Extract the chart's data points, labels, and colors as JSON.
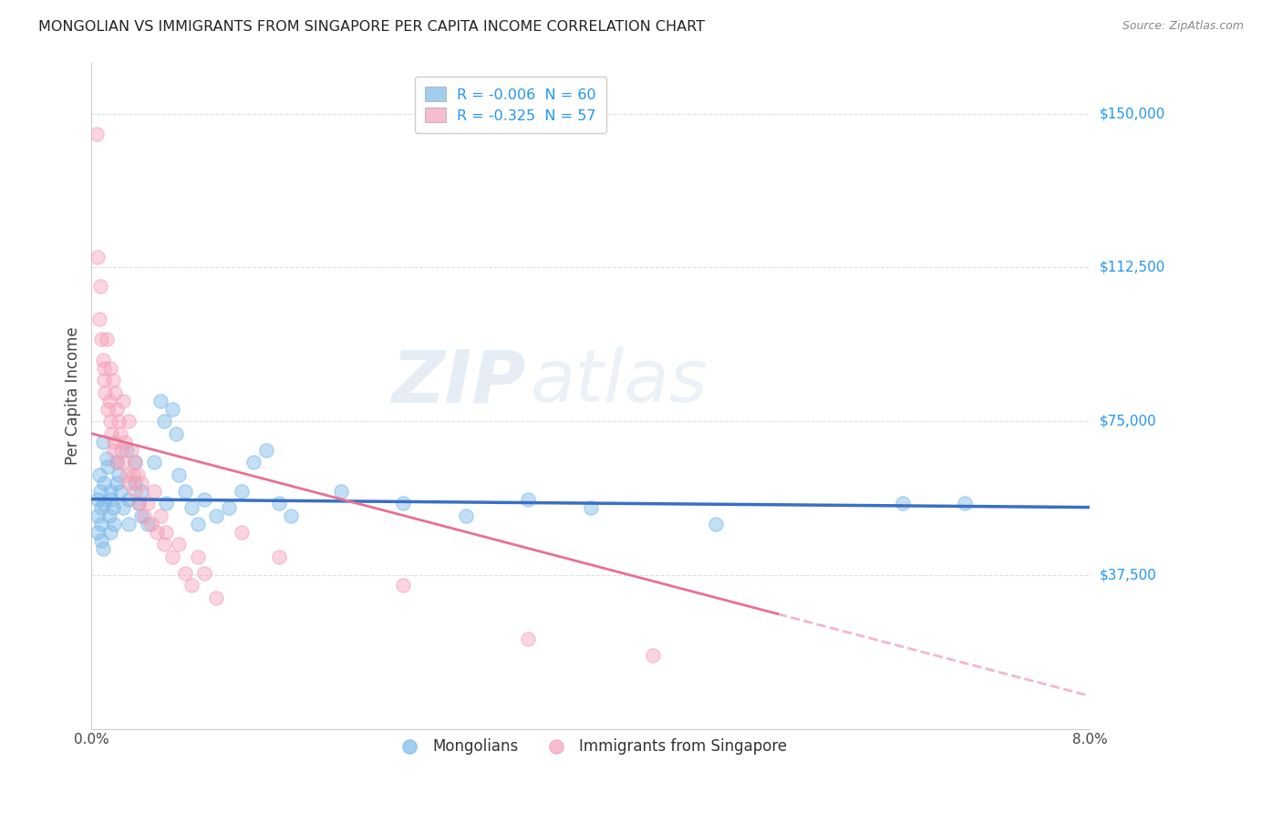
{
  "title": "MONGOLIAN VS IMMIGRANTS FROM SINGAPORE PER CAPITA INCOME CORRELATION CHART",
  "source": "Source: ZipAtlas.com",
  "ylabel": "Per Capita Income",
  "yticks": [
    0,
    37500,
    75000,
    112500,
    150000
  ],
  "ytick_labels": [
    "",
    "$37,500",
    "$75,000",
    "$112,500",
    "$150,000"
  ],
  "xlim": [
    0.0,
    8.0
  ],
  "ylim": [
    0,
    162500
  ],
  "watermark": "ZIPatlas",
  "mongolian_color": "#7ab8e8",
  "singapore_color": "#f4a0b8",
  "mongolian_R": -0.006,
  "singapore_R": -0.325,
  "mongolian_N": 60,
  "singapore_N": 57,
  "mongolian_line_color": "#3a6fc4",
  "singapore_line_color": "#e87090",
  "grid_color": "#d8d8d8",
  "background_color": "#ffffff",
  "mongolian_points": [
    [
      0.05,
      56000
    ],
    [
      0.05,
      52000
    ],
    [
      0.05,
      48000
    ],
    [
      0.06,
      62000
    ],
    [
      0.07,
      58000
    ],
    [
      0.08,
      54000
    ],
    [
      0.08,
      50000
    ],
    [
      0.08,
      46000
    ],
    [
      0.09,
      70000
    ],
    [
      0.09,
      44000
    ],
    [
      0.1,
      60000
    ],
    [
      0.1,
      55000
    ],
    [
      0.12,
      66000
    ],
    [
      0.13,
      64000
    ],
    [
      0.14,
      52000
    ],
    [
      0.15,
      58000
    ],
    [
      0.15,
      48000
    ],
    [
      0.16,
      56000
    ],
    [
      0.17,
      54000
    ],
    [
      0.18,
      50000
    ],
    [
      0.2,
      65000
    ],
    [
      0.2,
      60000
    ],
    [
      0.22,
      62000
    ],
    [
      0.23,
      58000
    ],
    [
      0.25,
      54000
    ],
    [
      0.28,
      68000
    ],
    [
      0.3,
      56000
    ],
    [
      0.3,
      50000
    ],
    [
      0.35,
      65000
    ],
    [
      0.35,
      60000
    ],
    [
      0.38,
      55000
    ],
    [
      0.4,
      58000
    ],
    [
      0.4,
      52000
    ],
    [
      0.45,
      50000
    ],
    [
      0.5,
      65000
    ],
    [
      0.55,
      80000
    ],
    [
      0.58,
      75000
    ],
    [
      0.6,
      55000
    ],
    [
      0.65,
      78000
    ],
    [
      0.68,
      72000
    ],
    [
      0.7,
      62000
    ],
    [
      0.75,
      58000
    ],
    [
      0.8,
      54000
    ],
    [
      0.85,
      50000
    ],
    [
      0.9,
      56000
    ],
    [
      1.0,
      52000
    ],
    [
      1.1,
      54000
    ],
    [
      1.2,
      58000
    ],
    [
      1.3,
      65000
    ],
    [
      1.4,
      68000
    ],
    [
      1.5,
      55000
    ],
    [
      1.6,
      52000
    ],
    [
      2.0,
      58000
    ],
    [
      2.5,
      55000
    ],
    [
      3.0,
      52000
    ],
    [
      3.5,
      56000
    ],
    [
      4.0,
      54000
    ],
    [
      5.0,
      50000
    ],
    [
      6.5,
      55000
    ],
    [
      7.0,
      55000
    ]
  ],
  "singapore_points": [
    [
      0.04,
      145000
    ],
    [
      0.05,
      115000
    ],
    [
      0.06,
      100000
    ],
    [
      0.07,
      108000
    ],
    [
      0.08,
      95000
    ],
    [
      0.09,
      90000
    ],
    [
      0.1,
      88000
    ],
    [
      0.1,
      85000
    ],
    [
      0.11,
      82000
    ],
    [
      0.12,
      95000
    ],
    [
      0.13,
      78000
    ],
    [
      0.14,
      80000
    ],
    [
      0.15,
      88000
    ],
    [
      0.15,
      75000
    ],
    [
      0.16,
      72000
    ],
    [
      0.17,
      85000
    ],
    [
      0.18,
      70000
    ],
    [
      0.18,
      68000
    ],
    [
      0.19,
      82000
    ],
    [
      0.2,
      78000
    ],
    [
      0.2,
      65000
    ],
    [
      0.22,
      75000
    ],
    [
      0.23,
      72000
    ],
    [
      0.24,
      68000
    ],
    [
      0.25,
      80000
    ],
    [
      0.25,
      65000
    ],
    [
      0.27,
      70000
    ],
    [
      0.28,
      62000
    ],
    [
      0.3,
      75000
    ],
    [
      0.3,
      60000
    ],
    [
      0.32,
      68000
    ],
    [
      0.33,
      62000
    ],
    [
      0.35,
      65000
    ],
    [
      0.35,
      58000
    ],
    [
      0.37,
      62000
    ],
    [
      0.38,
      55000
    ],
    [
      0.4,
      60000
    ],
    [
      0.42,
      52000
    ],
    [
      0.45,
      55000
    ],
    [
      0.48,
      50000
    ],
    [
      0.5,
      58000
    ],
    [
      0.52,
      48000
    ],
    [
      0.55,
      52000
    ],
    [
      0.58,
      45000
    ],
    [
      0.6,
      48000
    ],
    [
      0.65,
      42000
    ],
    [
      0.7,
      45000
    ],
    [
      0.75,
      38000
    ],
    [
      0.8,
      35000
    ],
    [
      0.85,
      42000
    ],
    [
      0.9,
      38000
    ],
    [
      1.0,
      32000
    ],
    [
      1.2,
      48000
    ],
    [
      1.5,
      42000
    ],
    [
      2.5,
      35000
    ],
    [
      3.5,
      22000
    ],
    [
      4.5,
      18000
    ]
  ]
}
